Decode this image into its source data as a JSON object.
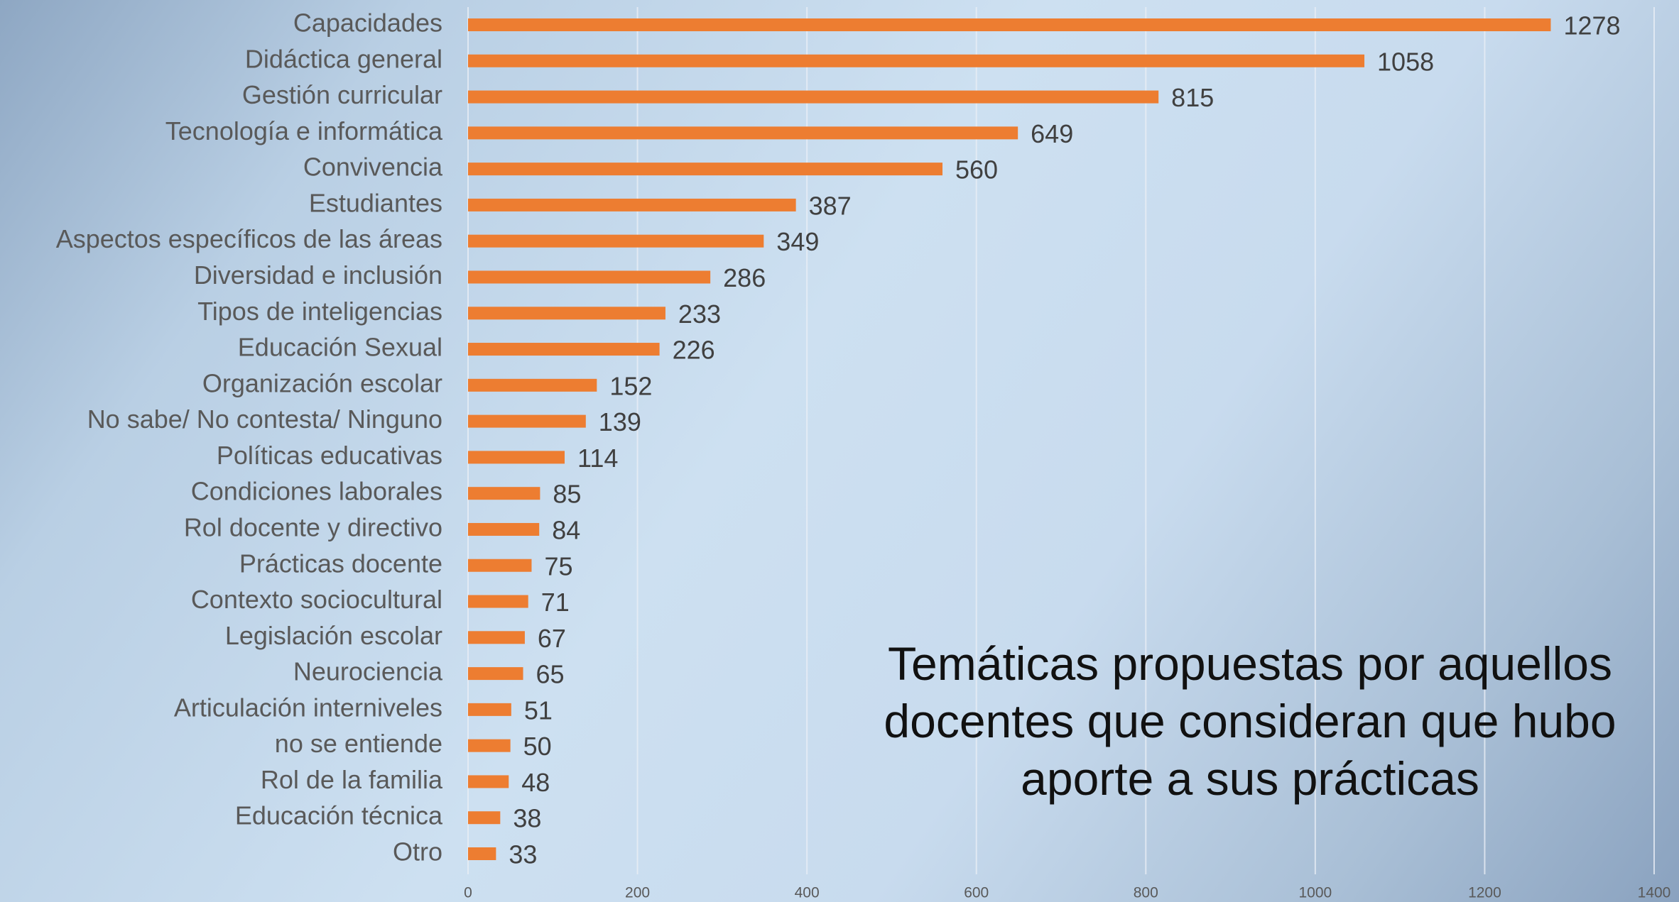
{
  "chart_data": {
    "type": "bar",
    "orientation": "horizontal",
    "title": "Temáticas propuestas por aquellos docentes que consideran que hubo aporte a sus prácticas",
    "categories": [
      "Capacidades",
      "Didáctica general",
      "Gestión curricular",
      "Tecnología e informática",
      "Convivencia",
      "Estudiantes",
      "Aspectos específicos de las áreas",
      "Diversidad e inclusión",
      "Tipos de inteligencias",
      "Educación Sexual",
      "Organización escolar",
      "No sabe/ No contesta/ Ninguno",
      "Políticas educativas",
      "Condiciones laborales",
      "Rol docente y directivo",
      "Prácticas docente",
      "Contexto sociocultural",
      "Legislación escolar",
      "Neurociencia",
      "Articulación interniveles",
      "no se entiende",
      "Rol de la familia",
      "Educación técnica",
      "Otro"
    ],
    "values": [
      1278,
      1058,
      815,
      649,
      560,
      387,
      349,
      286,
      233,
      226,
      152,
      139,
      114,
      85,
      84,
      75,
      71,
      67,
      65,
      51,
      50,
      48,
      38,
      33
    ],
    "color": "#ed7d31",
    "xlim": [
      0,
      1400
    ],
    "xticks": [
      0,
      200,
      400,
      600,
      800,
      1000,
      1200,
      1400
    ],
    "grid": true
  }
}
